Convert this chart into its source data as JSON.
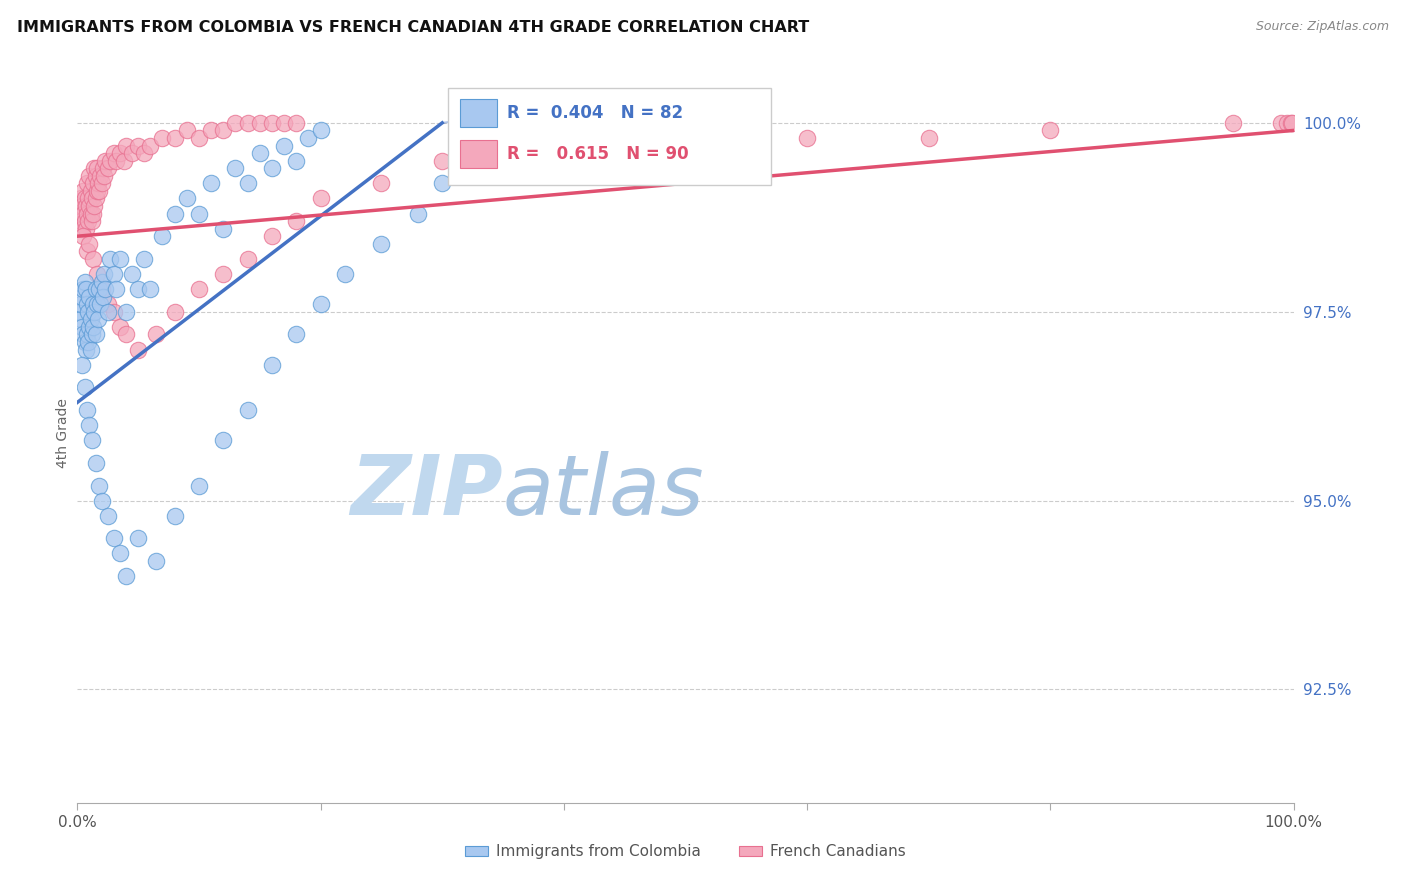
{
  "title": "IMMIGRANTS FROM COLOMBIA VS FRENCH CANADIAN 4TH GRADE CORRELATION CHART",
  "source": "Source: ZipAtlas.com",
  "ylabel": "4th Grade",
  "ytick_labels": [
    "100.0%",
    "97.5%",
    "95.0%",
    "92.5%"
  ],
  "ytick_values": [
    100.0,
    97.5,
    95.0,
    92.5
  ],
  "ymin": 91.0,
  "ymax": 100.8,
  "xmin": 0.0,
  "xmax": 100.0,
  "legend_blue_label": "Immigrants from Colombia",
  "legend_pink_label": "French Canadians",
  "R_blue": 0.404,
  "N_blue": 82,
  "R_pink": 0.615,
  "N_pink": 90,
  "blue_color": "#A8C8F0",
  "pink_color": "#F4A8BC",
  "blue_edge_color": "#5B9BD5",
  "pink_edge_color": "#E87090",
  "blue_line_color": "#4472C4",
  "pink_line_color": "#E05070",
  "watermark_zip_color": "#C8DCF0",
  "watermark_atlas_color": "#A0C0E8",
  "grid_color": "#CCCCCC",
  "blue_scatter_x": [
    0.2,
    0.3,
    0.3,
    0.4,
    0.4,
    0.5,
    0.5,
    0.6,
    0.6,
    0.7,
    0.7,
    0.8,
    0.8,
    0.9,
    0.9,
    1.0,
    1.0,
    1.1,
    1.1,
    1.2,
    1.3,
    1.3,
    1.4,
    1.5,
    1.5,
    1.6,
    1.7,
    1.8,
    1.9,
    2.0,
    2.1,
    2.2,
    2.3,
    2.5,
    2.7,
    3.0,
    3.2,
    3.5,
    4.0,
    4.5,
    5.0,
    5.5,
    6.0,
    7.0,
    8.0,
    9.0,
    10.0,
    11.0,
    12.0,
    13.0,
    14.0,
    15.0,
    16.0,
    17.0,
    18.0,
    19.0,
    20.0,
    0.4,
    0.6,
    0.8,
    1.0,
    1.2,
    1.5,
    1.8,
    2.0,
    2.5,
    3.0,
    3.5,
    4.0,
    5.0,
    6.5,
    8.0,
    10.0,
    12.0,
    14.0,
    16.0,
    18.0,
    20.0,
    22.0,
    25.0,
    28.0,
    30.0
  ],
  "blue_scatter_y": [
    97.5,
    97.4,
    97.6,
    97.3,
    97.7,
    97.2,
    97.8,
    97.1,
    97.9,
    97.0,
    97.8,
    97.2,
    97.6,
    97.1,
    97.5,
    97.3,
    97.7,
    97.0,
    97.4,
    97.2,
    97.6,
    97.3,
    97.5,
    97.8,
    97.2,
    97.6,
    97.4,
    97.8,
    97.6,
    97.9,
    97.7,
    98.0,
    97.8,
    97.5,
    98.2,
    98.0,
    97.8,
    98.2,
    97.5,
    98.0,
    97.8,
    98.2,
    97.8,
    98.5,
    98.8,
    99.0,
    98.8,
    99.2,
    98.6,
    99.4,
    99.2,
    99.6,
    99.4,
    99.7,
    99.5,
    99.8,
    99.9,
    96.8,
    96.5,
    96.2,
    96.0,
    95.8,
    95.5,
    95.2,
    95.0,
    94.8,
    94.5,
    94.3,
    94.0,
    94.5,
    94.2,
    94.8,
    95.2,
    95.8,
    96.2,
    96.8,
    97.2,
    97.6,
    98.0,
    98.4,
    98.8,
    99.2
  ],
  "pink_scatter_x": [
    0.2,
    0.3,
    0.3,
    0.4,
    0.4,
    0.5,
    0.5,
    0.6,
    0.6,
    0.7,
    0.7,
    0.8,
    0.8,
    0.9,
    0.9,
    1.0,
    1.0,
    1.1,
    1.1,
    1.2,
    1.2,
    1.3,
    1.3,
    1.4,
    1.4,
    1.5,
    1.5,
    1.6,
    1.6,
    1.7,
    1.8,
    1.9,
    2.0,
    2.1,
    2.2,
    2.3,
    2.5,
    2.7,
    3.0,
    3.2,
    3.5,
    3.8,
    4.0,
    4.5,
    5.0,
    5.5,
    6.0,
    7.0,
    8.0,
    9.0,
    10.0,
    11.0,
    12.0,
    13.0,
    14.0,
    15.0,
    16.0,
    17.0,
    18.0,
    0.5,
    0.8,
    1.0,
    1.3,
    1.6,
    2.0,
    2.5,
    3.0,
    3.5,
    4.0,
    5.0,
    6.5,
    8.0,
    10.0,
    12.0,
    14.0,
    16.0,
    18.0,
    20.0,
    25.0,
    30.0,
    40.0,
    50.0,
    60.0,
    70.0,
    80.0,
    95.0,
    99.0,
    99.5,
    99.8,
    99.9
  ],
  "pink_scatter_y": [
    98.8,
    98.7,
    99.0,
    98.6,
    98.9,
    98.8,
    99.1,
    98.7,
    99.0,
    98.6,
    98.9,
    98.8,
    99.2,
    98.7,
    99.0,
    98.9,
    99.3,
    98.8,
    99.1,
    98.7,
    99.0,
    98.8,
    99.2,
    98.9,
    99.4,
    99.0,
    99.3,
    99.1,
    99.4,
    99.2,
    99.1,
    99.3,
    99.2,
    99.4,
    99.3,
    99.5,
    99.4,
    99.5,
    99.6,
    99.5,
    99.6,
    99.5,
    99.7,
    99.6,
    99.7,
    99.6,
    99.7,
    99.8,
    99.8,
    99.9,
    99.8,
    99.9,
    99.9,
    100.0,
    100.0,
    100.0,
    100.0,
    100.0,
    100.0,
    98.5,
    98.3,
    98.4,
    98.2,
    98.0,
    97.8,
    97.6,
    97.5,
    97.3,
    97.2,
    97.0,
    97.2,
    97.5,
    97.8,
    98.0,
    98.2,
    98.5,
    98.7,
    99.0,
    99.2,
    99.5,
    99.6,
    99.7,
    99.8,
    99.8,
    99.9,
    100.0,
    100.0,
    100.0,
    100.0,
    100.0
  ]
}
